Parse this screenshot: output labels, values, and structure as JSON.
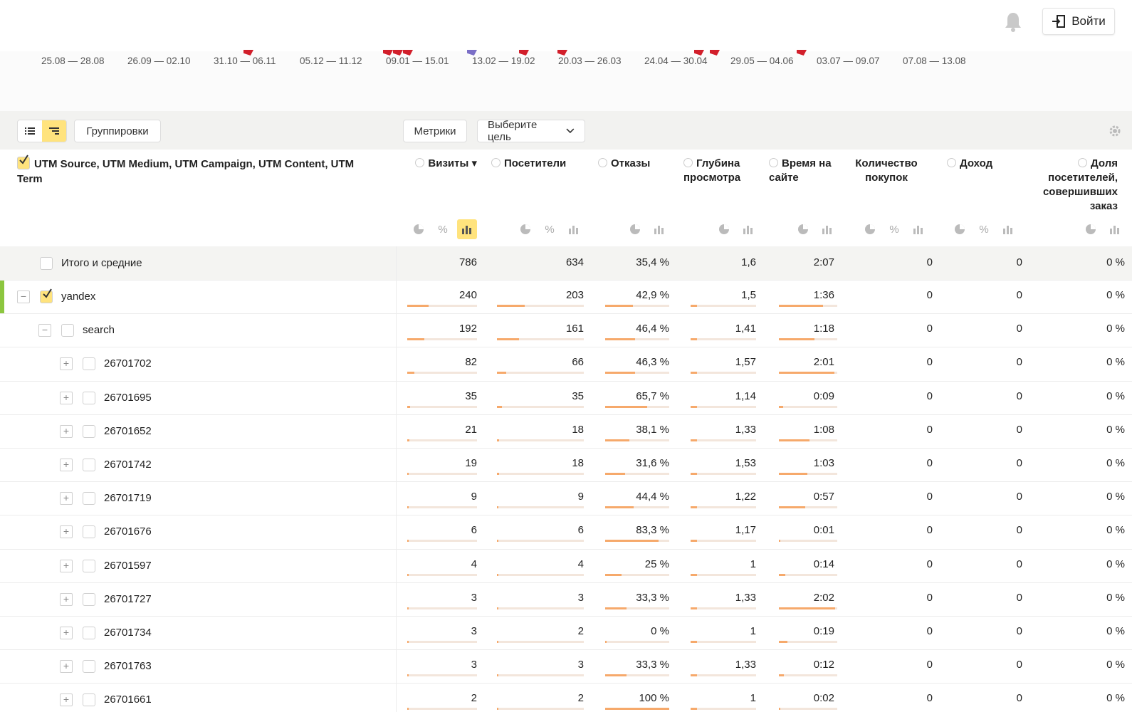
{
  "header": {
    "login_label": "Войти"
  },
  "timeline": [
    "25.08 — 28.08",
    "26.09 — 02.10",
    "31.10 — 06.11",
    "05.12 — 11.12",
    "09.01 — 15.01",
    "13.02 — 19.02",
    "20.03 — 26.03",
    "24.04 — 30.04",
    "29.05 — 04.06",
    "03.07 — 09.07",
    "07.08 — 13.08"
  ],
  "toolbar": {
    "groupings_label": "Группировки",
    "metrics_label": "Метрики",
    "goal_label": "Выберите цель"
  },
  "table": {
    "dimension_title": "UTM Source, UTM Medium, UTM Campaign, UTM Content, UTM Term",
    "columns": [
      "Визиты",
      "Посетители",
      "Отказы",
      "Глубина просмотра",
      "Время на сайте",
      "Количество покупок",
      "Доход",
      "Доля посетителей, совершивших заказ"
    ],
    "total": {
      "label": "Итого и средние",
      "values": [
        "786",
        "634",
        "35,4 %",
        "1,6",
        "2:07",
        "0",
        "0",
        "0 %"
      ]
    },
    "rows": [
      {
        "label": "yandex",
        "level": 0,
        "expander": "−",
        "checked": true,
        "values": [
          "240",
          "203",
          "42,9 %",
          "1,5",
          "1:36",
          "0",
          "0",
          "0 %"
        ],
        "bars": [
          0.305,
          0.32,
          0.429,
          0.1,
          0.75
        ]
      },
      {
        "label": "search",
        "level": 1,
        "expander": "−",
        "checked": false,
        "values": [
          "192",
          "161",
          "46,4 %",
          "1,41",
          "1:18",
          "0",
          "0",
          "0 %"
        ],
        "bars": [
          0.244,
          0.254,
          0.464,
          0.1,
          0.61
        ]
      },
      {
        "label": "26701702",
        "level": 2,
        "expander": "+",
        "checked": false,
        "values": [
          "82",
          "66",
          "46,3 %",
          "1,57",
          "2:01",
          "0",
          "0",
          "0 %"
        ],
        "bars": [
          0.104,
          0.104,
          0.463,
          0.1,
          0.95
        ]
      },
      {
        "label": "26701695",
        "level": 2,
        "expander": "+",
        "checked": false,
        "values": [
          "35",
          "35",
          "65,7 %",
          "1,14",
          "0:09",
          "0",
          "0",
          "0 %"
        ],
        "bars": [
          0.045,
          0.055,
          0.657,
          0.1,
          0.07
        ]
      },
      {
        "label": "26701652",
        "level": 2,
        "expander": "+",
        "checked": false,
        "values": [
          "21",
          "18",
          "38,1 %",
          "1,33",
          "1:08",
          "0",
          "0",
          "0 %"
        ],
        "bars": [
          0.027,
          0.028,
          0.381,
          0.1,
          0.53
        ]
      },
      {
        "label": "26701742",
        "level": 2,
        "expander": "+",
        "checked": false,
        "values": [
          "19",
          "18",
          "31,6 %",
          "1,53",
          "1:03",
          "0",
          "0",
          "0 %"
        ],
        "bars": [
          0.024,
          0.028,
          0.316,
          0.1,
          0.49
        ]
      },
      {
        "label": "26701719",
        "level": 2,
        "expander": "+",
        "checked": false,
        "values": [
          "9",
          "9",
          "44,4 %",
          "1,22",
          "0:57",
          "0",
          "0",
          "0 %"
        ],
        "bars": [
          0.011,
          0.014,
          0.444,
          0.1,
          0.45
        ]
      },
      {
        "label": "26701676",
        "level": 2,
        "expander": "+",
        "checked": false,
        "values": [
          "6",
          "6",
          "83,3 %",
          "1,17",
          "0:01",
          "0",
          "0",
          "0 %"
        ],
        "bars": [
          0.008,
          0.009,
          0.833,
          0.1,
          0.01
        ]
      },
      {
        "label": "26701597",
        "level": 2,
        "expander": "+",
        "checked": false,
        "values": [
          "4",
          "4",
          "25 %",
          "1",
          "0:14",
          "0",
          "0",
          "0 %"
        ],
        "bars": [
          0.005,
          0.006,
          0.25,
          0.1,
          0.11
        ]
      },
      {
        "label": "26701727",
        "level": 2,
        "expander": "+",
        "checked": false,
        "values": [
          "3",
          "3",
          "33,3 %",
          "1,33",
          "2:02",
          "0",
          "0",
          "0 %"
        ],
        "bars": [
          0.004,
          0.005,
          0.333,
          0.1,
          0.96
        ]
      },
      {
        "label": "26701734",
        "level": 2,
        "expander": "+",
        "checked": false,
        "values": [
          "3",
          "2",
          "0 %",
          "1",
          "0:19",
          "0",
          "0",
          "0 %"
        ],
        "bars": [
          0.004,
          0.003,
          0.0,
          0.1,
          0.15
        ]
      },
      {
        "label": "26701763",
        "level": 2,
        "expander": "+",
        "checked": false,
        "values": [
          "3",
          "3",
          "33,3 %",
          "1,33",
          "0:12",
          "0",
          "0",
          "0 %"
        ],
        "bars": [
          0.004,
          0.005,
          0.333,
          0.1,
          0.09
        ]
      },
      {
        "label": "26701661",
        "level": 2,
        "expander": "+",
        "checked": false,
        "values": [
          "2",
          "2",
          "100 %",
          "1",
          "0:02",
          "0",
          "0",
          "0 %"
        ],
        "bars": [
          0.003,
          0.003,
          1.0,
          0.1,
          0.02
        ]
      }
    ]
  }
}
